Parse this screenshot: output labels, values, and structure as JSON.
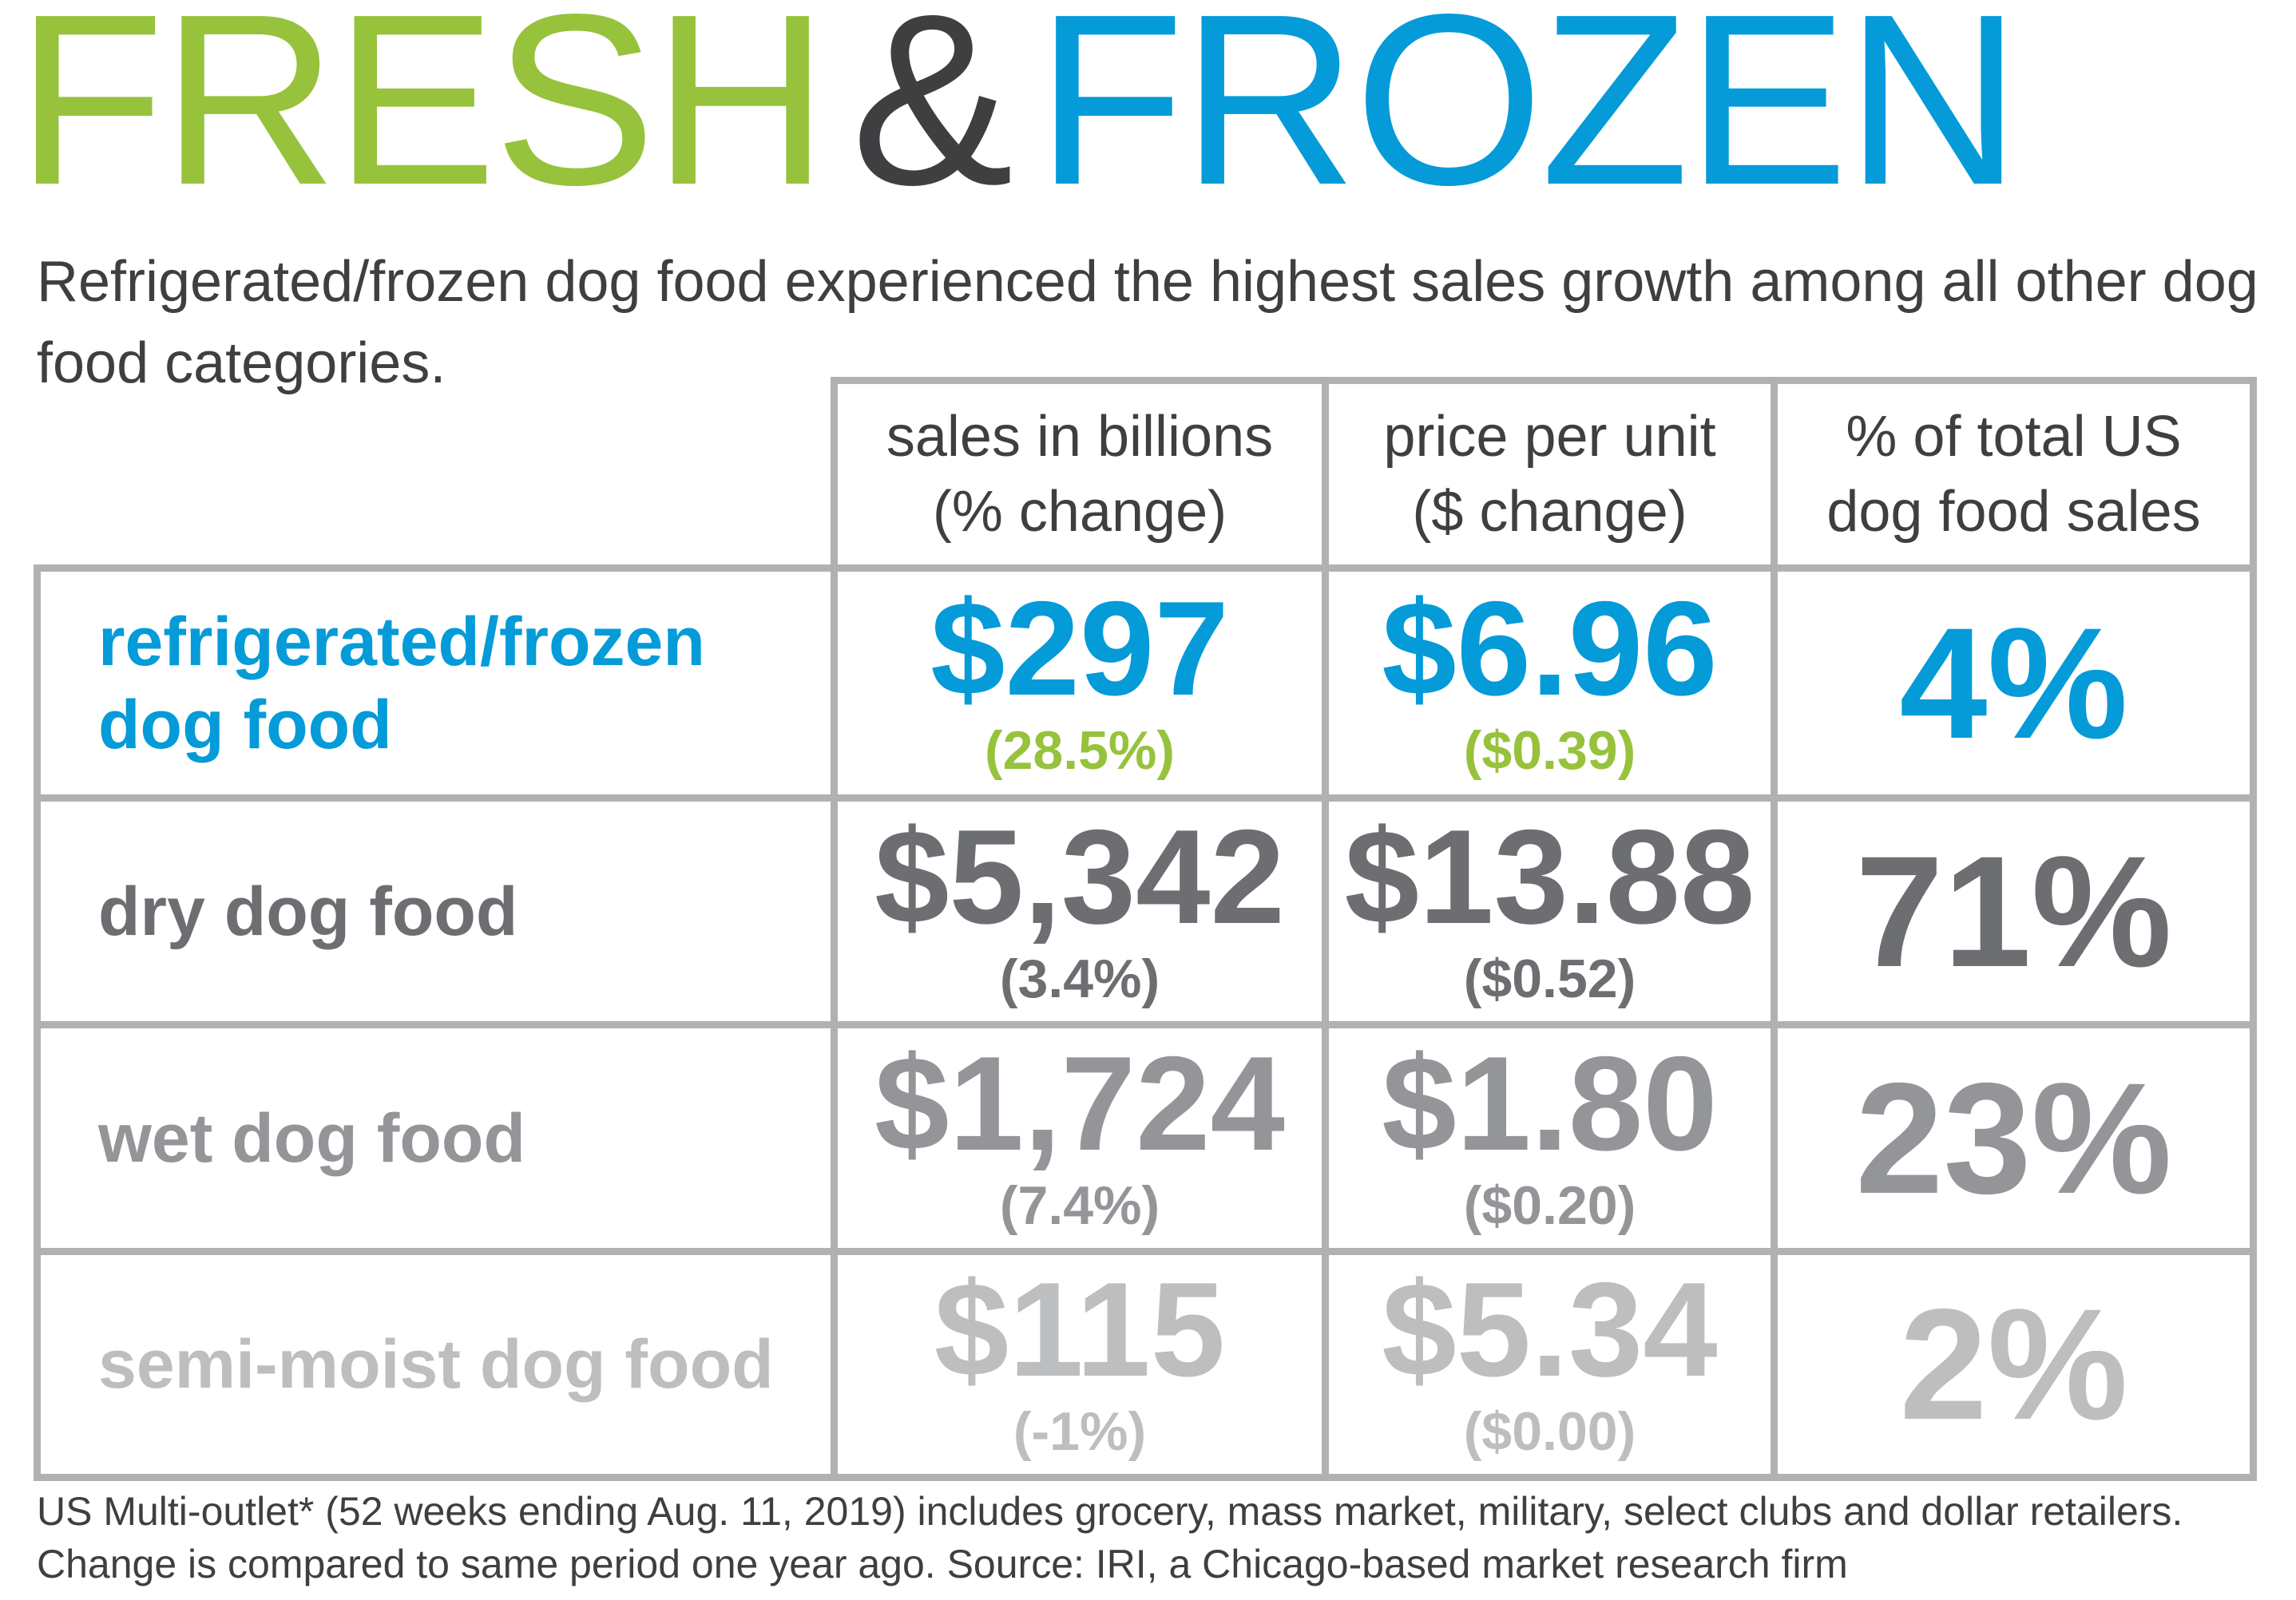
{
  "title": {
    "word1": "FRESH",
    "amp": "&",
    "word2": "FROZEN"
  },
  "subtitle": "Refrigerated/frozen dog food experienced the highest sales growth among all other dog food categories.",
  "table": {
    "headers": {
      "sales": [
        "sales in billions",
        "(% change)"
      ],
      "price": [
        "price per unit",
        "($ change)"
      ],
      "share": [
        "% of total US",
        "dog food sales"
      ]
    },
    "rows": [
      {
        "label": [
          "refrigerated/frozen",
          "dog food"
        ],
        "sales": "$297",
        "sales_change": "(28.5%)",
        "price": "$6.96",
        "price_change": "($0.39)",
        "share": "4%"
      },
      {
        "label": [
          "dry dog food"
        ],
        "sales": "$5,342",
        "sales_change": "(3.4%)",
        "price": "$13.88",
        "price_change": "($0.52)",
        "share": "71%"
      },
      {
        "label": [
          "wet dog food"
        ],
        "sales": "$1,724",
        "sales_change": "(7.4%)",
        "price": "$1.80",
        "price_change": "($0.20)",
        "share": "23%"
      },
      {
        "label": [
          "semi-moist dog food"
        ],
        "sales": "$115",
        "sales_change": "(-1%)",
        "price": "$5.34",
        "price_change": "($0.00)",
        "share": "2%"
      }
    ]
  },
  "footnote": "US Multi-outlet* (52 weeks ending Aug. 11, 2019) includes grocery, mass market, military, select clubs and dollar retailers. Change is compared to same period one year ago. Source: IRI, a Chicago-based market research firm",
  "colors": {
    "green": "#97c23c",
    "blue": "#049bd8",
    "charcoal": "#3f3f41",
    "dark_gray": "#6d6e71",
    "mid_gray": "#939598",
    "light_gray": "#bcbec0",
    "border": "#b1b1b3"
  },
  "chart_data": {
    "type": "table",
    "title": "FRESH & FROZEN",
    "subtitle": "Refrigerated/frozen dog food experienced the highest sales growth among all other dog food categories.",
    "columns": [
      "sales in billions (% change)",
      "price per unit ($ change)",
      "% of total US dog food sales"
    ],
    "categories": [
      "refrigerated/frozen dog food",
      "dry dog food",
      "wet dog food",
      "semi-moist dog food"
    ],
    "series": [
      {
        "name": "sales in billions",
        "values": [
          297,
          5342,
          1724,
          115
        ]
      },
      {
        "name": "% change",
        "values": [
          28.5,
          3.4,
          7.4,
          -1
        ]
      },
      {
        "name": "price per unit",
        "values": [
          6.96,
          13.88,
          1.8,
          5.34
        ]
      },
      {
        "name": "$ change",
        "values": [
          0.39,
          0.52,
          0.2,
          0.0
        ]
      },
      {
        "name": "% of total US dog food sales",
        "values": [
          4,
          71,
          23,
          2
        ]
      }
    ]
  }
}
